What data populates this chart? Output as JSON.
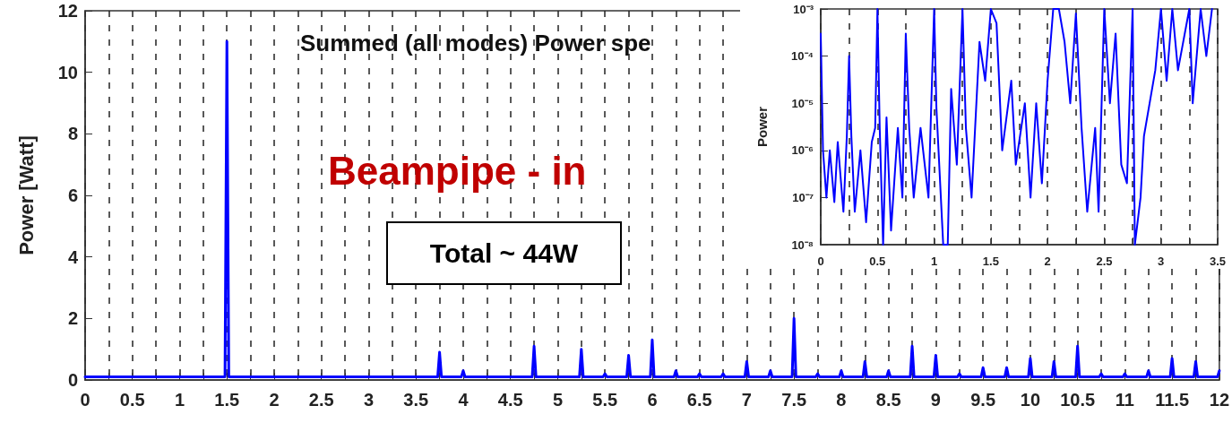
{
  "chart_data": [
    {
      "type": "line",
      "title": "Summed (all modes) Power spe",
      "ylabel": "Power [Watt]",
      "annotations": [
        "Beampipe - in",
        "Total ~ 44W"
      ],
      "xlim": [
        0,
        12
      ],
      "xticks": [
        0,
        {
          "value": 0.25,
          "label": null
        },
        0.5,
        {
          "value": 0.75,
          "label": null
        },
        1,
        {
          "value": 1.25,
          "label": null
        },
        1.5,
        {
          "value": 1.75,
          "label": null
        },
        2,
        {
          "value": 2.25,
          "label": null
        },
        2.5,
        {
          "value": 2.75,
          "label": null
        },
        3,
        {
          "value": 3.25,
          "label": null
        },
        3.5,
        {
          "value": 3.75,
          "label": null
        },
        4,
        {
          "value": 4.25,
          "label": null
        },
        4.5,
        {
          "value": 4.75,
          "label": null
        },
        5,
        {
          "value": 5.25,
          "label": null
        },
        5.5,
        {
          "value": 5.75,
          "label": null
        },
        6,
        {
          "value": 6.25,
          "label": null
        },
        6.5,
        {
          "value": 6.75,
          "label": null
        },
        7,
        {
          "value": 7.25,
          "label": null
        },
        7.5,
        {
          "value": 7.75,
          "label": null
        },
        8,
        {
          "value": 8.25,
          "label": null
        },
        8.5,
        {
          "value": 8.75,
          "label": null
        },
        9,
        {
          "value": 9.25,
          "label": null
        },
        9.5,
        {
          "value": 9.75,
          "label": null
        },
        10,
        {
          "value": 10.25,
          "label": null
        },
        10.5,
        {
          "value": 10.75,
          "label": null
        },
        11,
        {
          "value": 11.25,
          "label": null
        },
        11.5,
        {
          "value": 11.75,
          "label": null
        },
        12
      ],
      "ylim": [
        0,
        12
      ],
      "yticks": [
        0,
        2,
        4,
        6,
        8,
        10,
        12
      ],
      "grid": "x",
      "marker": "none",
      "line_style": "solid",
      "series": [
        {
          "color": "#0000ff",
          "x": [
            0,
            1.48,
            1.5,
            1.52,
            3.73,
            3.75,
            3.77,
            3.98,
            4,
            4.02,
            4.73,
            4.75,
            4.77,
            5.23,
            5.25,
            5.27,
            5.48,
            5.5,
            5.52,
            5.73,
            5.75,
            5.77,
            5.98,
            6,
            6.02,
            6.23,
            6.25,
            6.27,
            6.48,
            6.5,
            6.52,
            6.73,
            6.75,
            6.77,
            6.98,
            7,
            7.02,
            7.23,
            7.25,
            7.27,
            7.48,
            7.5,
            7.52,
            7.73,
            7.75,
            7.77,
            7.98,
            8,
            8.02,
            8.23,
            8.25,
            8.27,
            8.48,
            8.5,
            8.52,
            8.73,
            8.75,
            8.77,
            8.98,
            9,
            9.02,
            9.23,
            9.25,
            9.27,
            9.48,
            9.5,
            9.52,
            9.73,
            9.75,
            9.77,
            9.98,
            10,
            10.02,
            10.23,
            10.25,
            10.27,
            10.48,
            10.5,
            10.52,
            10.73,
            10.75,
            10.77,
            10.98,
            11,
            11.02,
            11.23,
            11.25,
            11.27,
            11.48,
            11.5,
            11.52,
            11.73,
            11.75,
            11.77,
            11.98,
            12
          ],
          "values": [
            0.1,
            0.1,
            11,
            0.1,
            0.1,
            0.9,
            0.1,
            0.1,
            0.3,
            0.1,
            0.1,
            1.1,
            0.1,
            0.1,
            1.0,
            0.1,
            0.1,
            0.2,
            0.1,
            0.1,
            0.8,
            0.1,
            0.1,
            1.3,
            0.1,
            0.1,
            0.3,
            0.1,
            0.1,
            0.2,
            0.1,
            0.1,
            0.2,
            0.1,
            0.1,
            0.6,
            0.1,
            0.1,
            0.3,
            0.1,
            0.1,
            2.0,
            0.1,
            0.1,
            0.2,
            0.1,
            0.1,
            0.3,
            0.1,
            0.1,
            0.6,
            0.1,
            0.1,
            0.3,
            0.1,
            0.1,
            1.1,
            0.1,
            0.1,
            0.8,
            0.1,
            0.1,
            0.2,
            0.1,
            0.1,
            0.4,
            0.1,
            0.1,
            0.4,
            0.1,
            0.1,
            0.7,
            0.1,
            0.1,
            0.6,
            0.1,
            0.1,
            1.1,
            0.1,
            0.1,
            0.2,
            0.1,
            0.1,
            0.2,
            0.1,
            0.1,
            0.3,
            0.1,
            0.1,
            0.7,
            0.1,
            0.1,
            0.6,
            0.1,
            0.1,
            0.3
          ]
        }
      ]
    },
    {
      "type": "line",
      "ylabel": "Power",
      "log": "y",
      "xlim": [
        0,
        3.5
      ],
      "xticks": [
        0,
        {
          "value": 0.25,
          "label": null
        },
        0.5,
        {
          "value": 0.75,
          "label": null
        },
        1,
        {
          "value": 1.25,
          "label": null
        },
        1.5,
        {
          "value": 1.75,
          "label": null
        },
        2,
        {
          "value": 2.25,
          "label": null
        },
        2.5,
        {
          "value": 2.75,
          "label": null
        },
        3,
        {
          "value": 3.25,
          "label": null
        },
        3.5
      ],
      "ylim": [
        1e-08,
        0.001
      ],
      "yticks": [
        {
          "value": 1e-08,
          "label": "10⁻⁸"
        },
        {
          "value": 1e-07,
          "label": "10⁻⁷"
        },
        {
          "value": 1e-06,
          "label": "10⁻⁶"
        },
        {
          "value": 1e-05,
          "label": "10⁻⁵"
        },
        {
          "value": 0.0001,
          "label": "10⁻⁴"
        },
        {
          "value": 0.001,
          "label": "10⁻³"
        }
      ],
      "grid": "x",
      "marker": "none",
      "line_style": "solid",
      "series": [
        {
          "color": "#0000ff",
          "x": [
            0,
            0.02,
            0.05,
            0.08,
            0.12,
            0.15,
            0.2,
            0.23,
            0.25,
            0.27,
            0.3,
            0.35,
            0.4,
            0.45,
            0.48,
            0.5,
            0.52,
            0.55,
            0.58,
            0.62,
            0.68,
            0.72,
            0.75,
            0.78,
            0.82,
            0.88,
            0.95,
            1,
            1.02,
            1.08,
            1.12,
            1.15,
            1.2,
            1.25,
            1.28,
            1.33,
            1.4,
            1.45,
            1.5,
            1.55,
            1.6,
            1.68,
            1.72,
            1.8,
            1.85,
            1.9,
            1.95,
            2,
            2.05,
            2.1,
            2.15,
            2.2,
            2.25,
            2.3,
            2.35,
            2.42,
            2.45,
            2.5,
            2.55,
            2.6,
            2.65,
            2.7,
            2.75,
            2.77,
            2.82,
            2.85,
            2.95,
            3,
            3.05,
            3.1,
            3.15,
            3.25,
            3.28,
            3.35,
            3.4,
            3.45
          ],
          "values": [
            0.0003,
            1e-06,
            1e-07,
            1e-06,
            8e-08,
            1.5e-06,
            5e-08,
            2e-06,
            0.0001,
            2e-06,
            5e-08,
            1e-06,
            3e-08,
            1.5e-06,
            3e-06,
            0.001,
            3e-06,
            1e-08,
            5e-06,
            2e-08,
            3e-06,
            1e-07,
            0.0003,
            3e-06,
            1e-07,
            3e-06,
            1e-07,
            0.001,
            8e-06,
            1e-08,
            1e-08,
            2e-05,
            5e-07,
            0.001,
            3e-06,
            1e-07,
            0.0002,
            3e-05,
            0.001,
            0.0005,
            1e-06,
            3e-05,
            5e-07,
            1e-05,
            1e-07,
            1e-05,
            2e-07,
            3e-05,
            0.001,
            0.001,
            0.0002,
            1e-05,
            0.0008,
            3e-06,
            5e-08,
            3e-06,
            5e-08,
            0.001,
            1e-05,
            0.0003,
            5e-07,
            2e-07,
            0.001,
            1e-08,
            1e-07,
            2e-06,
            5e-05,
            0.001,
            3e-05,
            0.001,
            5e-05,
            0.001,
            1e-05,
            0.001,
            0.0001,
            0.001
          ]
        }
      ]
    }
  ]
}
